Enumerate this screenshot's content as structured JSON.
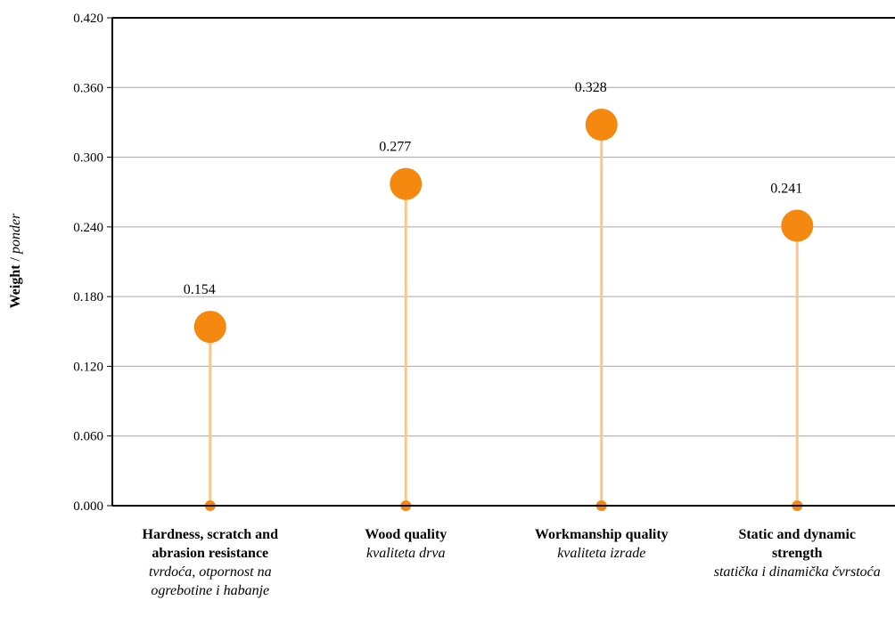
{
  "chart_data": {
    "type": "lollipop",
    "ylabel_main": "Weight",
    "ylabel_sep": " / ",
    "ylabel_alt": "ponder",
    "ylim": [
      0,
      0.42
    ],
    "yticks": [
      "0.000",
      "0.060",
      "0.120",
      "0.180",
      "0.240",
      "0.300",
      "0.360",
      "0.420"
    ],
    "grid": true,
    "categories": [
      {
        "en": "Hardness, scratch and abrasion resistance",
        "hr": "tvrdoća, otpornost na ogrebotine i habanje"
      },
      {
        "en": "Wood quality",
        "hr": "kvaliteta drva"
      },
      {
        "en": "Workmanship quality",
        "hr": "kvaliteta izrade"
      },
      {
        "en": "Static and dynamic strength",
        "hr": "statička i dinamička čvrstoća"
      }
    ],
    "values": [
      0.154,
      0.277,
      0.328,
      0.241
    ],
    "value_labels": [
      "0.154",
      "0.277",
      "0.328",
      "0.241"
    ],
    "colors": {
      "marker": "#f5890f",
      "stem": "#f9c68e",
      "grid": "#a6a6a6",
      "axis": "#000000"
    }
  }
}
